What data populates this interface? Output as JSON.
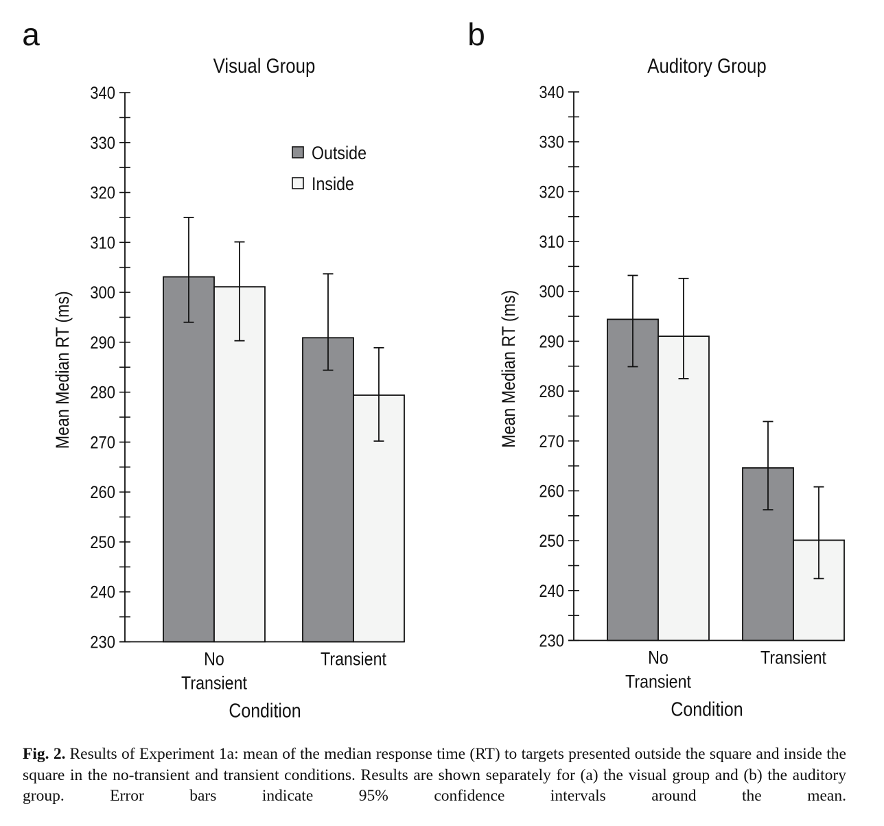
{
  "figure": {
    "caption_label": "Fig. 2.",
    "caption_text": "Results of Experiment 1a: mean of the median response time (RT) to targets presented outside the square and inside the square in the no-transient and transient conditions. Results are shown separately for (a) the visual group and (b) the auditory group. Error bars indicate 95% confidence intervals around the mean."
  },
  "colors": {
    "outside": "#8e8f92",
    "inside": "#f4f5f4",
    "axis": "#111111"
  },
  "chart_data": [
    {
      "type": "bar",
      "panel_label": "a",
      "title": "Visual Group",
      "xlabel": "Condition",
      "ylabel": "Mean Median RT (ms)",
      "ylim": [
        230,
        340
      ],
      "yticks": [
        230,
        240,
        250,
        260,
        270,
        280,
        290,
        300,
        310,
        320,
        330,
        340
      ],
      "minor_tick_step": 5,
      "categories": [
        [
          "No",
          "Transient"
        ],
        [
          "Transient"
        ]
      ],
      "legend": {
        "placement": "top-right",
        "entries": [
          "Outside",
          "Inside"
        ]
      },
      "series": [
        {
          "name": "Outside",
          "values": [
            303.1,
            290.9
          ],
          "ci_low": [
            294.0,
            284.4
          ],
          "ci_high": [
            315.0,
            303.7
          ]
        },
        {
          "name": "Inside",
          "values": [
            301.1,
            279.4
          ],
          "ci_low": [
            290.3,
            270.2
          ],
          "ci_high": [
            310.1,
            288.9
          ]
        }
      ]
    },
    {
      "type": "bar",
      "panel_label": "b",
      "title": "Auditory Group",
      "xlabel": "Condition",
      "ylabel": "Mean Median RT (ms)",
      "ylim": [
        230,
        340
      ],
      "yticks": [
        230,
        240,
        250,
        260,
        270,
        280,
        290,
        300,
        310,
        320,
        330,
        340
      ],
      "minor_tick_step": 5,
      "categories": [
        [
          "No",
          "Transient"
        ],
        [
          "Transient"
        ]
      ],
      "legend": null,
      "series": [
        {
          "name": "Outside",
          "values": [
            294.4,
            264.6
          ],
          "ci_low": [
            284.9,
            256.2
          ],
          "ci_high": [
            303.2,
            273.9
          ]
        },
        {
          "name": "Inside",
          "values": [
            291.0,
            250.1
          ],
          "ci_low": [
            282.5,
            242.4
          ],
          "ci_high": [
            302.6,
            260.8
          ]
        }
      ]
    }
  ]
}
